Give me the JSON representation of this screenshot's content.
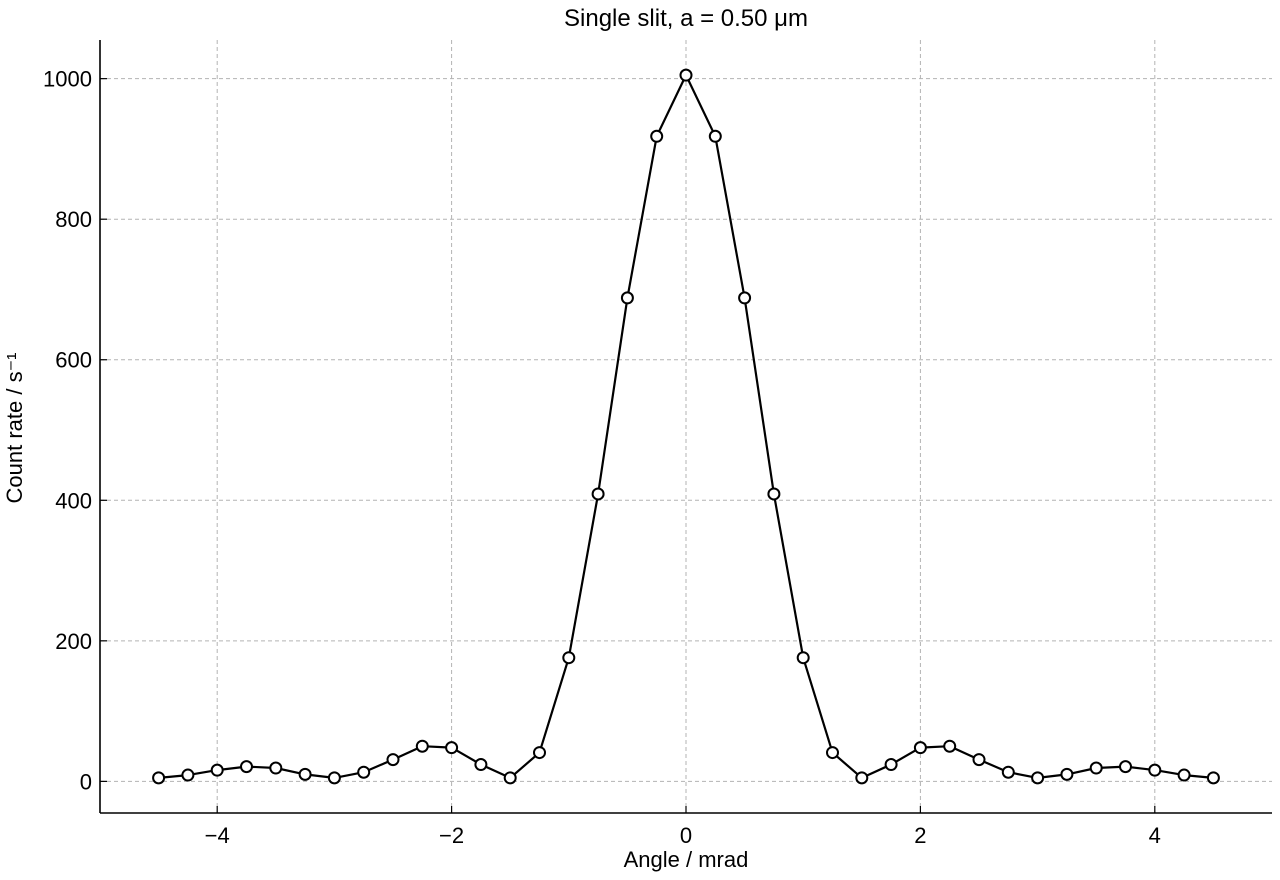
{
  "chart_data": {
    "type": "line",
    "title": "Single slit, a = 0.50 μm",
    "xlabel": "Angle / mrad",
    "ylabel": "Count rate / s⁻¹",
    "xlim": [
      -5.0,
      5.0
    ],
    "ylim": [
      -45,
      1055
    ],
    "xticks": [
      -4,
      -2,
      0,
      2,
      4
    ],
    "xtick_labels": [
      "−4",
      "−2",
      "0",
      "2",
      "4"
    ],
    "yticks": [
      0,
      200,
      400,
      600,
      800,
      1000
    ],
    "ytick_labels": [
      "0",
      "200",
      "400",
      "600",
      "800",
      "1000"
    ],
    "grid": true,
    "legend": "none",
    "colors": {
      "line": "#000000",
      "marker_fill": "#ffffff",
      "grid": "#b3b3b3"
    },
    "series": [
      {
        "x": [
          -4.5,
          -4.25,
          -4.0,
          -3.75,
          -3.5,
          -3.25,
          -3.0,
          -2.75,
          -2.5,
          -2.25,
          -2.0,
          -1.75,
          -1.5,
          -1.25,
          -1.0,
          -0.75,
          -0.5,
          -0.25,
          0.0,
          0.25,
          0.5,
          0.75,
          1.0,
          1.25,
          1.5,
          1.75,
          2.0,
          2.25,
          2.5,
          2.75,
          3.0,
          3.25,
          3.5,
          3.75,
          4.0,
          4.25,
          4.5
        ],
        "values": [
          5,
          9,
          16,
          21,
          19,
          10,
          5,
          13,
          31,
          50,
          48,
          24,
          5,
          41,
          176,
          409,
          688,
          918,
          1005,
          918,
          688,
          409,
          176,
          41,
          5,
          24,
          48,
          50,
          31,
          13,
          5,
          10,
          19,
          21,
          16,
          9,
          5
        ]
      }
    ]
  }
}
